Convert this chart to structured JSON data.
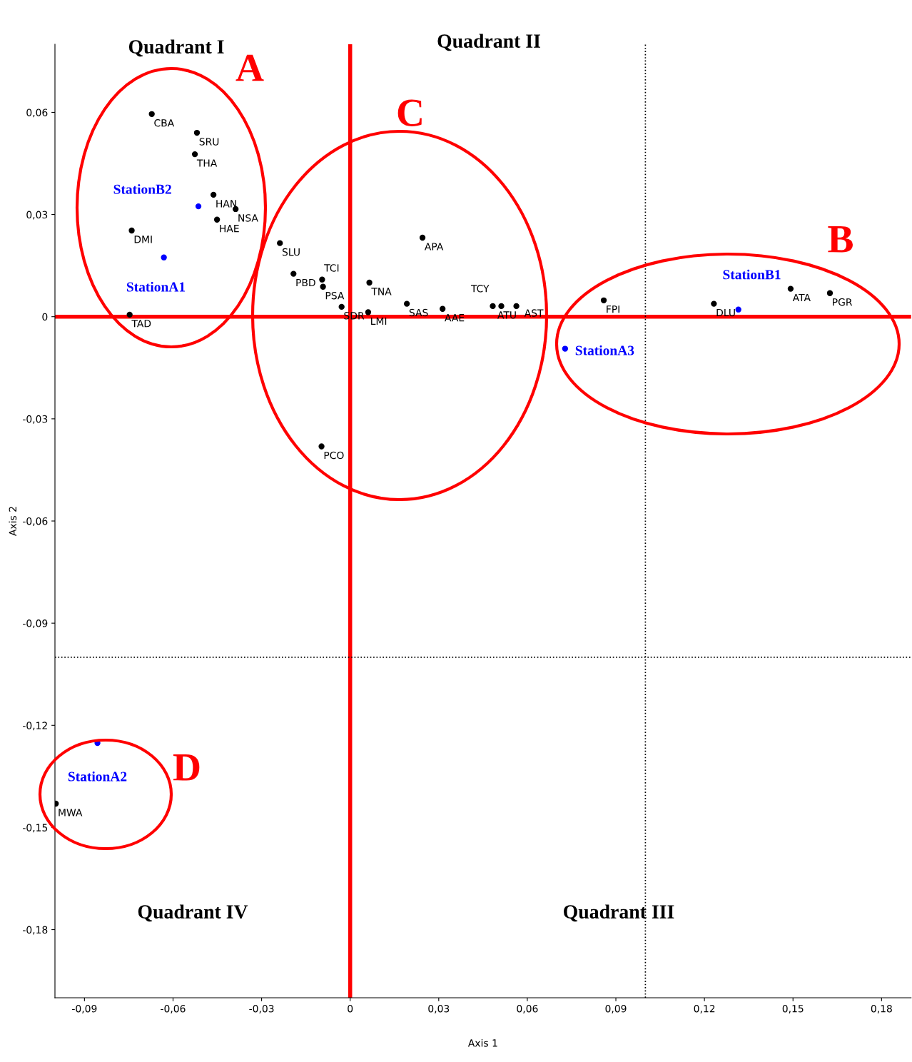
{
  "chart_data": {
    "type": "scatter",
    "xlabel": "Axis 1",
    "ylabel": "Axis 2",
    "xlim": [
      -0.1,
      0.19
    ],
    "ylim": [
      -0.2,
      0.08
    ],
    "xticks": [
      {
        "value": -0.09,
        "label": "-0,09"
      },
      {
        "value": -0.06,
        "label": "-0,06"
      },
      {
        "value": -0.03,
        "label": "-0,03"
      },
      0,
      {
        "value": 0.03,
        "label": "0,03"
      },
      {
        "value": 0.06,
        "label": "0,06"
      },
      {
        "value": 0.09,
        "label": "0,09"
      },
      {
        "value": 0.12,
        "label": "0,12"
      },
      {
        "value": 0.15,
        "label": "0,15"
      },
      {
        "value": 0.18,
        "label": "0,18"
      }
    ],
    "yticks": [
      {
        "value": 0.06,
        "label": "0,06"
      },
      {
        "value": 0.03,
        "label": "0,03"
      },
      0,
      {
        "value": -0.03,
        "label": "-0,03"
      },
      {
        "value": -0.06,
        "label": "-0,06"
      },
      {
        "value": -0.09,
        "label": "-0,09"
      },
      {
        "value": -0.12,
        "label": "-0,12"
      },
      {
        "value": -0.15,
        "label": "-0,15"
      },
      {
        "value": -0.18,
        "label": "-0,18"
      }
    ],
    "grid": false,
    "legend": false,
    "marker": "circle",
    "series": [
      {
        "color": "#000000",
        "x": [
          -0.0672,
          -0.0519,
          -0.0526,
          -0.0463,
          -0.0388,
          -0.0451,
          -0.074,
          -0.0747,
          -0.0238,
          -0.0192,
          -0.0095,
          -0.0092,
          -0.0029,
          0.0061,
          0.0065,
          0.0245,
          0.0192,
          0.0313,
          0.0483,
          0.0512,
          0.0563,
          0.0859,
          0.1232,
          0.1492,
          0.1625,
          -0.0097,
          -0.0997
        ],
        "values": [
          0.0595,
          0.054,
          0.0477,
          0.0358,
          0.0316,
          0.0285,
          0.0253,
          0.0006,
          0.0216,
          0.0126,
          0.0109,
          0.0088,
          0.0029,
          0.0013,
          0.01,
          0.0232,
          0.0038,
          0.0023,
          0.0031,
          0.0031,
          0.0031,
          0.0048,
          0.0038,
          0.0082,
          0.0069,
          -0.0381,
          -0.143
        ]
      },
      {
        "color": "#0000ff",
        "x": [
          -0.0514,
          -0.0631,
          0.1315,
          0.0728,
          -0.0856
        ],
        "values": [
          0.0324,
          0.0174,
          0.0021,
          -0.0094,
          -0.1252
        ]
      }
    ],
    "ref_lines": [
      {
        "axis": "x",
        "value": 0,
        "color": "#ff0000",
        "line_style": "solid"
      },
      {
        "axis": "y",
        "value": 0,
        "color": "#ff0000",
        "line_style": "solid"
      },
      {
        "axis": "x",
        "value": 0.1,
        "color": "#000000",
        "line_style": "dotted"
      },
      {
        "axis": "y",
        "value": -0.1,
        "color": "#000000",
        "line_style": "dotted"
      }
    ],
    "annotations": [
      {
        "text": "CBA",
        "x": -0.0672,
        "y": 0.0595
      },
      {
        "text": "SRU",
        "x": -0.0519,
        "y": 0.054
      },
      {
        "text": "THA",
        "x": -0.0526,
        "y": 0.0477
      },
      {
        "text": "HAN",
        "x": -0.0463,
        "y": 0.0358
      },
      {
        "text": "NSA",
        "x": -0.0388,
        "y": 0.0316
      },
      {
        "text": "HAE",
        "x": -0.0451,
        "y": 0.0285
      },
      {
        "text": "DMI",
        "x": -0.074,
        "y": 0.0253
      },
      {
        "text": "TAD",
        "x": -0.0747,
        "y": 0.0006
      },
      {
        "text": "SLU",
        "x": -0.0238,
        "y": 0.0216
      },
      {
        "text": "PBD",
        "x": -0.0192,
        "y": 0.0126
      },
      {
        "text": "TCI",
        "x": -0.0095,
        "y": 0.0109
      },
      {
        "text": "PSA",
        "x": -0.0092,
        "y": 0.0088
      },
      {
        "text": "SDR",
        "x": -0.0029,
        "y": 0.0029
      },
      {
        "text": "LMI",
        "x": 0.0061,
        "y": 0.0013
      },
      {
        "text": "TNA",
        "x": 0.0065,
        "y": 0.01
      },
      {
        "text": "APA",
        "x": 0.0245,
        "y": 0.0232
      },
      {
        "text": "SAS",
        "x": 0.0192,
        "y": 0.0038
      },
      {
        "text": "AAE",
        "x": 0.0313,
        "y": 0.0023
      },
      {
        "text": "TCY",
        "x": 0.0483,
        "y": 0.0031
      },
      {
        "text": "ATU",
        "x": 0.0512,
        "y": 0.0031
      },
      {
        "text": "AST",
        "x": 0.0563,
        "y": 0.0031
      },
      {
        "text": "FPI",
        "x": 0.0859,
        "y": 0.0048
      },
      {
        "text": "DLU",
        "x": 0.1232,
        "y": 0.0038
      },
      {
        "text": "ATA",
        "x": 0.1492,
        "y": 0.0082
      },
      {
        "text": "PGR",
        "x": 0.1625,
        "y": 0.0069
      },
      {
        "text": "PCO",
        "x": -0.0097,
        "y": -0.0381
      },
      {
        "text": "MWA",
        "x": -0.0997,
        "y": -0.143
      },
      {
        "text": "StationB2",
        "x": -0.0514,
        "y": 0.0324
      },
      {
        "text": "StationA1",
        "x": -0.0631,
        "y": 0.0174
      },
      {
        "text": "StationB1",
        "x": 0.1315,
        "y": 0.0021
      },
      {
        "text": "StationA3",
        "x": 0.0728,
        "y": -0.0094
      },
      {
        "text": "StationA2",
        "x": -0.0856,
        "y": -0.1252
      },
      "Quadrant I",
      "Quadrant II",
      "Quadrant III",
      "Quadrant IV",
      "A",
      "B",
      "C",
      "D"
    ]
  }
}
